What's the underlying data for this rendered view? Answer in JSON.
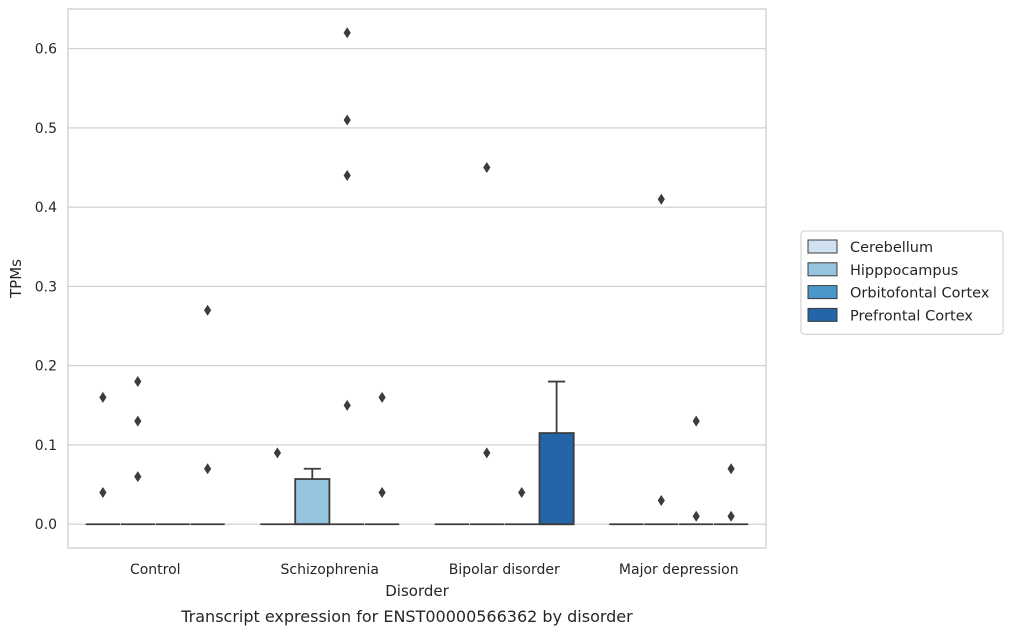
{
  "chart_data": {
    "type": "box",
    "caption": "Transcript expression for ENST00000566362 by disorder",
    "xlabel": "Disorder",
    "ylabel": "TPMs",
    "ylim": [
      -0.03,
      0.65
    ],
    "yticks": [
      0.0,
      0.1,
      0.2,
      0.3,
      0.4,
      0.5,
      0.6
    ],
    "ytick_labels": [
      "0.0",
      "0.1",
      "0.2",
      "0.3",
      "0.4",
      "0.5",
      "0.6"
    ],
    "grid": "horizontal",
    "legend_position": "right",
    "categories": [
      "Control",
      "Schizophrenia",
      "Bipolar disorder",
      "Major depression"
    ],
    "series": [
      {
        "name": "Cerebellum",
        "color": "#d0e1f2",
        "boxes": [
          {
            "q1": 0,
            "median": 0,
            "q3": 0,
            "whisker_low": 0,
            "whisker_high": 0,
            "outliers": [
              0.04,
              0.16
            ]
          },
          {
            "q1": 0,
            "median": 0,
            "q3": 0,
            "whisker_low": 0,
            "whisker_high": 0,
            "outliers": [
              0.09
            ]
          },
          {
            "q1": 0,
            "median": 0,
            "q3": 0,
            "whisker_low": 0,
            "whisker_high": 0,
            "outliers": []
          },
          {
            "q1": 0,
            "median": 0,
            "q3": 0,
            "whisker_low": 0,
            "whisker_high": 0,
            "outliers": []
          }
        ]
      },
      {
        "name": "Hipppocampus",
        "color": "#94c4df",
        "boxes": [
          {
            "q1": 0,
            "median": 0,
            "q3": 0,
            "whisker_low": 0,
            "whisker_high": 0,
            "outliers": [
              0.06,
              0.13,
              0.18
            ]
          },
          {
            "q1": 0,
            "median": 0,
            "q3": 0.057,
            "whisker_low": 0,
            "whisker_high": 0.07,
            "outliers": []
          },
          {
            "q1": 0,
            "median": 0,
            "q3": 0,
            "whisker_low": 0,
            "whisker_high": 0,
            "outliers": [
              0.09,
              0.45
            ]
          },
          {
            "q1": 0,
            "median": 0,
            "q3": 0,
            "whisker_low": 0,
            "whisker_high": 0,
            "outliers": [
              0.03,
              0.41
            ]
          }
        ]
      },
      {
        "name": "Orbitofontal Cortex",
        "color": "#4a98c9",
        "boxes": [
          {
            "q1": 0,
            "median": 0,
            "q3": 0,
            "whisker_low": 0,
            "whisker_high": 0,
            "outliers": []
          },
          {
            "q1": 0,
            "median": 0,
            "q3": 0,
            "whisker_low": 0,
            "whisker_high": 0,
            "outliers": [
              0.15,
              0.44,
              0.51,
              0.62
            ]
          },
          {
            "q1": 0,
            "median": 0,
            "q3": 0,
            "whisker_low": 0,
            "whisker_high": 0,
            "outliers": [
              0.04
            ]
          },
          {
            "q1": 0,
            "median": 0,
            "q3": 0,
            "whisker_low": 0,
            "whisker_high": 0,
            "outliers": [
              0.01,
              0.13
            ]
          }
        ]
      },
      {
        "name": "Prefrontal Cortex",
        "color": "#2465a8",
        "boxes": [
          {
            "q1": 0,
            "median": 0,
            "q3": 0,
            "whisker_low": 0,
            "whisker_high": 0,
            "outliers": [
              0.07,
              0.27
            ]
          },
          {
            "q1": 0,
            "median": 0,
            "q3": 0,
            "whisker_low": 0,
            "whisker_high": 0,
            "outliers": [
              0.04,
              0.16
            ]
          },
          {
            "q1": 0,
            "median": 0,
            "q3": 0.115,
            "whisker_low": 0,
            "whisker_high": 0.18,
            "outliers": []
          },
          {
            "q1": 0,
            "median": 0,
            "q3": 0,
            "whisker_low": 0,
            "whisker_high": 0,
            "outliers": [
              0.01,
              0.07
            ]
          }
        ]
      }
    ]
  }
}
